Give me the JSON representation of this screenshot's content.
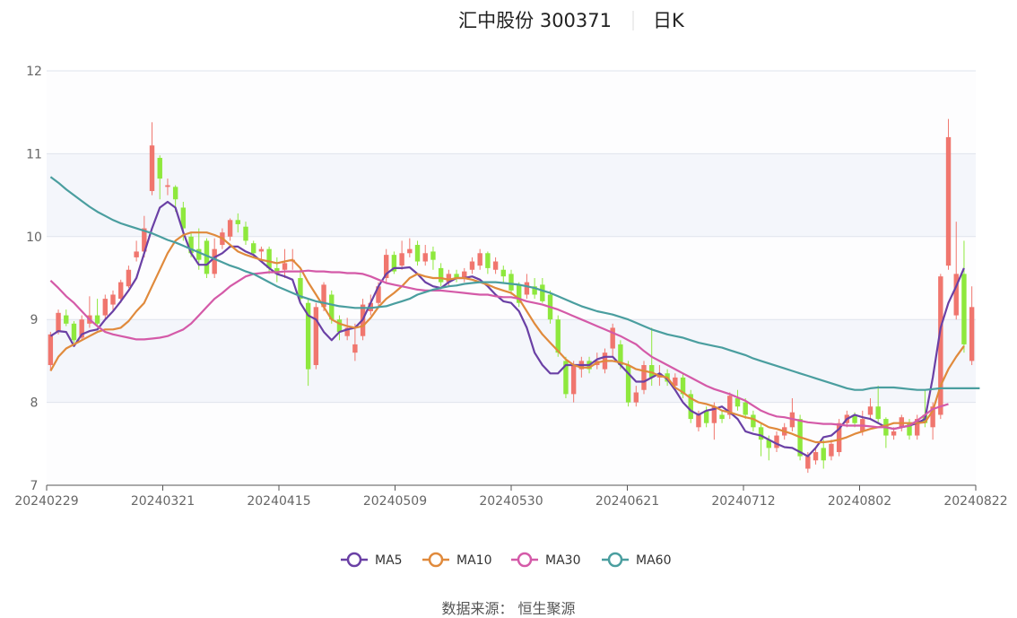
{
  "header": {
    "stock": "汇中股份 300371",
    "period": "日K"
  },
  "source": "数据来源：  恒生聚源",
  "colors": {
    "up": "#f0766e",
    "down": "#8ee83d",
    "grid": "#dfe3ec",
    "band": "#f4f6fb"
  },
  "chart_data": {
    "type": "candlestick",
    "ylim": [
      7,
      12
    ],
    "yticks": [
      "7",
      "8",
      "9",
      "10",
      "11",
      "12"
    ],
    "xticks": [
      "20240229",
      "20240321",
      "20240415",
      "20240509",
      "20240530",
      "20240621",
      "20240712",
      "20240802",
      "20240822"
    ],
    "candles": [
      [
        8.45,
        8.82,
        8.38,
        8.85
      ],
      [
        8.85,
        9.08,
        8.82,
        9.12
      ],
      [
        9.05,
        8.95,
        8.92,
        9.12
      ],
      [
        8.95,
        8.75,
        8.72,
        8.98
      ],
      [
        8.78,
        9.0,
        8.76,
        9.05
      ],
      [
        8.95,
        9.05,
        8.9,
        9.28
      ],
      [
        9.05,
        8.95,
        8.92,
        9.25
      ],
      [
        9.05,
        9.25,
        9.0,
        9.3
      ],
      [
        9.18,
        9.3,
        9.1,
        9.35
      ],
      [
        9.25,
        9.45,
        9.2,
        9.48
      ],
      [
        9.4,
        9.6,
        9.38,
        9.65
      ],
      [
        9.75,
        9.82,
        9.7,
        9.95
      ],
      [
        9.82,
        10.1,
        9.75,
        10.25
      ],
      [
        10.55,
        11.1,
        10.5,
        11.38
      ],
      [
        10.95,
        10.7,
        10.45,
        10.98
      ],
      [
        10.6,
        10.62,
        10.5,
        10.7
      ],
      [
        10.6,
        10.45,
        10.3,
        10.62
      ],
      [
        10.35,
        10.1,
        9.95,
        10.42
      ],
      [
        10.0,
        9.8,
        9.75,
        10.05
      ],
      [
        9.85,
        9.72,
        9.6,
        10.1
      ],
      [
        9.95,
        9.55,
        9.5,
        9.98
      ],
      [
        9.55,
        9.85,
        9.5,
        9.98
      ],
      [
        9.9,
        10.05,
        9.85,
        10.1
      ],
      [
        10.0,
        10.2,
        9.95,
        10.22
      ],
      [
        10.2,
        10.15,
        10.05,
        10.28
      ],
      [
        10.12,
        9.95,
        9.9,
        10.18
      ],
      [
        9.92,
        9.8,
        9.75,
        9.95
      ],
      [
        9.82,
        9.85,
        9.7,
        9.88
      ],
      [
        9.85,
        9.62,
        9.55,
        9.88
      ],
      [
        9.62,
        9.55,
        9.45,
        9.75
      ],
      [
        9.6,
        9.68,
        9.5,
        9.85
      ],
      [
        9.7,
        9.72,
        9.6,
        9.85
      ],
      [
        9.5,
        9.25,
        9.2,
        9.6
      ],
      [
        9.2,
        8.4,
        8.2,
        9.25
      ],
      [
        8.45,
        9.15,
        8.4,
        9.2
      ],
      [
        9.15,
        9.42,
        9.1,
        9.45
      ],
      [
        9.3,
        9.0,
        8.95,
        9.35
      ],
      [
        9.0,
        8.85,
        8.75,
        9.05
      ],
      [
        8.8,
        8.9,
        8.75,
        9.02
      ],
      [
        8.6,
        8.7,
        8.5,
        8.95
      ],
      [
        8.8,
        9.18,
        8.75,
        9.25
      ],
      [
        9.1,
        9.2,
        9.05,
        9.3
      ],
      [
        9.2,
        9.4,
        9.15,
        9.45
      ],
      [
        9.5,
        9.78,
        9.45,
        9.85
      ],
      [
        9.78,
        9.58,
        9.55,
        9.82
      ],
      [
        9.65,
        9.8,
        9.6,
        9.95
      ],
      [
        9.8,
        9.85,
        9.75,
        9.98
      ],
      [
        9.9,
        9.7,
        9.65,
        9.95
      ],
      [
        9.7,
        9.8,
        9.65,
        9.9
      ],
      [
        9.82,
        9.72,
        9.6,
        9.88
      ],
      [
        9.62,
        9.45,
        9.4,
        9.68
      ],
      [
        9.45,
        9.55,
        9.4,
        9.6
      ],
      [
        9.55,
        9.5,
        9.45,
        9.6
      ],
      [
        9.5,
        9.58,
        9.45,
        9.62
      ],
      [
        9.6,
        9.7,
        9.55,
        9.75
      ],
      [
        9.65,
        9.8,
        9.6,
        9.85
      ],
      [
        9.8,
        9.62,
        9.55,
        9.82
      ],
      [
        9.6,
        9.7,
        9.55,
        9.75
      ],
      [
        9.6,
        9.52,
        9.45,
        9.65
      ],
      [
        9.55,
        9.35,
        9.3,
        9.6
      ],
      [
        9.42,
        9.2,
        9.15,
        9.45
      ],
      [
        9.3,
        9.45,
        9.25,
        9.55
      ],
      [
        9.4,
        9.3,
        9.25,
        9.5
      ],
      [
        9.42,
        9.22,
        9.2,
        9.5
      ],
      [
        9.3,
        9.0,
        8.95,
        9.35
      ],
      [
        9.0,
        8.6,
        8.55,
        9.05
      ],
      [
        8.5,
        8.1,
        8.05,
        8.55
      ],
      [
        8.1,
        8.45,
        8.0,
        8.5
      ],
      [
        8.4,
        8.5,
        8.3,
        8.55
      ],
      [
        8.5,
        8.4,
        8.35,
        8.55
      ],
      [
        8.45,
        8.5,
        8.4,
        8.6
      ],
      [
        8.4,
        8.6,
        8.35,
        8.65
      ],
      [
        8.65,
        8.9,
        8.55,
        8.95
      ],
      [
        8.7,
        8.45,
        8.4,
        8.75
      ],
      [
        8.45,
        8.0,
        7.95,
        8.5
      ],
      [
        8.0,
        8.12,
        7.95,
        8.2
      ],
      [
        8.15,
        8.45,
        8.1,
        8.5
      ],
      [
        8.45,
        8.3,
        8.2,
        8.9
      ],
      [
        8.3,
        8.35,
        8.2,
        8.45
      ],
      [
        8.35,
        8.25,
        8.2,
        8.4
      ],
      [
        8.2,
        8.3,
        8.15,
        8.35
      ],
      [
        8.3,
        8.1,
        8.05,
        8.35
      ],
      [
        8.1,
        7.8,
        7.75,
        8.15
      ],
      [
        7.7,
        7.85,
        7.65,
        7.9
      ],
      [
        7.9,
        7.75,
        7.7,
        7.95
      ],
      [
        7.75,
        7.95,
        7.55,
        8.0
      ],
      [
        7.85,
        7.8,
        7.75,
        7.9
      ],
      [
        7.85,
        8.08,
        7.8,
        8.12
      ],
      [
        8.05,
        7.95,
        7.9,
        8.15
      ],
      [
        8.0,
        7.85,
        7.8,
        8.05
      ],
      [
        7.85,
        7.7,
        7.65,
        7.9
      ],
      [
        7.7,
        7.55,
        7.35,
        7.75
      ],
      [
        7.55,
        7.45,
        7.3,
        7.6
      ],
      [
        7.45,
        7.6,
        7.4,
        7.65
      ],
      [
        7.6,
        7.7,
        7.55,
        7.75
      ],
      [
        7.7,
        7.88,
        7.65,
        8.05
      ],
      [
        7.8,
        7.35,
        7.3,
        7.85
      ],
      [
        7.2,
        7.35,
        7.15,
        7.4
      ],
      [
        7.3,
        7.4,
        7.25,
        7.45
      ],
      [
        7.45,
        7.3,
        7.2,
        7.55
      ],
      [
        7.35,
        7.5,
        7.3,
        7.55
      ],
      [
        7.4,
        7.75,
        7.35,
        7.8
      ],
      [
        7.75,
        7.85,
        7.7,
        7.9
      ],
      [
        7.85,
        7.75,
        7.7,
        7.88
      ],
      [
        7.65,
        7.8,
        7.6,
        7.9
      ],
      [
        7.85,
        7.95,
        7.8,
        8.05
      ],
      [
        7.95,
        7.8,
        7.75,
        8.2
      ],
      [
        7.8,
        7.6,
        7.45,
        7.82
      ],
      [
        7.6,
        7.65,
        7.55,
        7.7
      ],
      [
        7.7,
        7.82,
        7.65,
        7.85
      ],
      [
        7.75,
        7.6,
        7.55,
        7.8
      ],
      [
        7.6,
        7.8,
        7.55,
        7.85
      ],
      [
        7.85,
        7.75,
        7.7,
        8.15
      ],
      [
        7.7,
        7.95,
        7.55,
        8.0
      ],
      [
        7.85,
        9.52,
        7.8,
        9.55
      ],
      [
        9.65,
        11.2,
        9.6,
        11.42
      ],
      [
        9.05,
        9.55,
        9.0,
        10.18
      ],
      [
        9.55,
        8.7,
        8.6,
        9.95
      ],
      [
        8.5,
        9.15,
        8.45,
        9.4
      ]
    ],
    "series": [
      {
        "name": "MA5",
        "color": "#6a40a5",
        "values": [
          8.8,
          8.86,
          8.85,
          8.68,
          8.82,
          8.86,
          8.88,
          9.0,
          9.1,
          9.22,
          9.35,
          9.5,
          9.8,
          10.1,
          10.35,
          10.42,
          10.35,
          10.05,
          9.8,
          9.66,
          9.66,
          9.75,
          9.8,
          9.88,
          9.88,
          9.82,
          9.78,
          9.7,
          9.62,
          9.55,
          9.52,
          9.48,
          9.2,
          9.05,
          9.0,
          8.85,
          8.75,
          8.85,
          8.88,
          8.9,
          9.0,
          9.2,
          9.4,
          9.55,
          9.62,
          9.62,
          9.63,
          9.55,
          9.45,
          9.4,
          9.38,
          9.45,
          9.5,
          9.5,
          9.52,
          9.48,
          9.4,
          9.3,
          9.22,
          9.2,
          9.1,
          8.9,
          8.6,
          8.45,
          8.35,
          8.35,
          8.45,
          8.45,
          8.45,
          8.45,
          8.52,
          8.55,
          8.55,
          8.45,
          8.35,
          8.25,
          8.25,
          8.3,
          8.35,
          8.28,
          8.15,
          8.0,
          7.9,
          7.85,
          7.9,
          7.92,
          7.95,
          7.88,
          7.8,
          7.65,
          7.62,
          7.6,
          7.55,
          7.5,
          7.46,
          7.45,
          7.4,
          7.35,
          7.45,
          7.58,
          7.6,
          7.68,
          7.8,
          7.85,
          7.82,
          7.8,
          7.75,
          7.7,
          7.68,
          7.7,
          7.72,
          7.75,
          7.8,
          8.3,
          8.9,
          9.2,
          9.4,
          9.62
        ]
      },
      {
        "name": "MA10",
        "color": "#e08a3c",
        "values": [
          8.38,
          8.55,
          8.65,
          8.7,
          8.75,
          8.8,
          8.85,
          8.88,
          8.88,
          8.9,
          8.98,
          9.1,
          9.2,
          9.4,
          9.6,
          9.8,
          9.95,
          10.02,
          10.05,
          10.05,
          10.05,
          10.02,
          9.98,
          9.9,
          9.82,
          9.78,
          9.75,
          9.72,
          9.7,
          9.68,
          9.7,
          9.72,
          9.62,
          9.45,
          9.3,
          9.15,
          9.0,
          8.95,
          8.92,
          8.9,
          8.92,
          9.02,
          9.15,
          9.25,
          9.32,
          9.4,
          9.5,
          9.55,
          9.52,
          9.5,
          9.5,
          9.48,
          9.5,
          9.5,
          9.48,
          9.45,
          9.42,
          9.38,
          9.35,
          9.32,
          9.25,
          9.1,
          8.95,
          8.82,
          8.72,
          8.62,
          8.52,
          8.45,
          8.42,
          8.42,
          8.48,
          8.5,
          8.5,
          8.48,
          8.45,
          8.4,
          8.38,
          8.36,
          8.32,
          8.3,
          8.18,
          8.12,
          8.05,
          8.0,
          7.98,
          7.95,
          7.9,
          7.88,
          7.85,
          7.82,
          7.8,
          7.75,
          7.7,
          7.68,
          7.65,
          7.62,
          7.58,
          7.55,
          7.52,
          7.52,
          7.53,
          7.55,
          7.58,
          7.62,
          7.65,
          7.68,
          7.7,
          7.72,
          7.75,
          7.75,
          7.75,
          7.75,
          7.76,
          7.9,
          8.2,
          8.4,
          8.55,
          8.68
        ]
      },
      {
        "name": "MA30",
        "color": "#d45aa8",
        "values": [
          9.47,
          9.38,
          9.28,
          9.2,
          9.1,
          9.0,
          8.92,
          8.85,
          8.82,
          8.8,
          8.78,
          8.76,
          8.76,
          8.77,
          8.78,
          8.8,
          8.84,
          8.88,
          8.95,
          9.05,
          9.15,
          9.25,
          9.32,
          9.4,
          9.46,
          9.52,
          9.55,
          9.56,
          9.57,
          9.57,
          9.58,
          9.58,
          9.58,
          9.59,
          9.58,
          9.58,
          9.57,
          9.57,
          9.56,
          9.56,
          9.55,
          9.52,
          9.48,
          9.44,
          9.42,
          9.4,
          9.38,
          9.36,
          9.35,
          9.35,
          9.35,
          9.34,
          9.33,
          9.32,
          9.31,
          9.3,
          9.3,
          9.28,
          9.27,
          9.27,
          9.25,
          9.22,
          9.2,
          9.18,
          9.15,
          9.12,
          9.08,
          9.04,
          9.0,
          8.96,
          8.92,
          8.88,
          8.84,
          8.8,
          8.75,
          8.7,
          8.62,
          8.55,
          8.5,
          8.45,
          8.4,
          8.35,
          8.3,
          8.25,
          8.2,
          8.16,
          8.13,
          8.1,
          8.06,
          8.02,
          7.96,
          7.9,
          7.86,
          7.83,
          7.82,
          7.8,
          7.78,
          7.76,
          7.75,
          7.74,
          7.74,
          7.73,
          7.72,
          7.72,
          7.72,
          7.71,
          7.7,
          7.7,
          7.68,
          7.7,
          7.72,
          7.78,
          7.85,
          7.92,
          7.95,
          7.98
        ]
      },
      {
        "name": "MA60",
        "color": "#4a9e9f",
        "values": [
          10.72,
          10.65,
          10.57,
          10.5,
          10.43,
          10.36,
          10.3,
          10.25,
          10.2,
          10.16,
          10.13,
          10.1,
          10.07,
          10.04,
          10.0,
          9.96,
          9.93,
          9.89,
          9.85,
          9.81,
          9.77,
          9.73,
          9.69,
          9.65,
          9.62,
          9.58,
          9.55,
          9.5,
          9.45,
          9.4,
          9.36,
          9.32,
          9.28,
          9.25,
          9.22,
          9.2,
          9.18,
          9.16,
          9.15,
          9.14,
          9.14,
          9.14,
          9.15,
          9.16,
          9.19,
          9.22,
          9.25,
          9.3,
          9.33,
          9.36,
          9.38,
          9.4,
          9.41,
          9.43,
          9.44,
          9.45,
          9.45,
          9.45,
          9.44,
          9.43,
          9.42,
          9.4,
          9.38,
          9.35,
          9.32,
          9.28,
          9.24,
          9.2,
          9.16,
          9.13,
          9.1,
          9.08,
          9.06,
          9.03,
          9.0,
          8.96,
          8.92,
          8.88,
          8.85,
          8.82,
          8.8,
          8.78,
          8.75,
          8.72,
          8.7,
          8.68,
          8.66,
          8.63,
          8.6,
          8.57,
          8.53,
          8.5,
          8.47,
          8.44,
          8.41,
          8.38,
          8.35,
          8.32,
          8.29,
          8.26,
          8.23,
          8.2,
          8.17,
          8.15,
          8.15,
          8.17,
          8.18,
          8.18,
          8.18,
          8.17,
          8.16,
          8.15,
          8.15,
          8.16,
          8.17,
          8.17,
          8.17,
          8.17,
          8.17,
          8.17
        ]
      }
    ]
  }
}
